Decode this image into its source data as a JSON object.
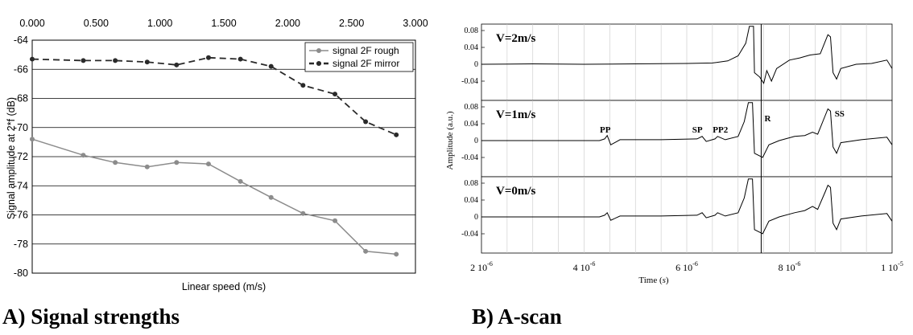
{
  "chart_data": [
    {
      "type": "line",
      "caption": "A) Signal strengths",
      "title": "",
      "xlabel": "Linear speed (m/s)",
      "ylabel": "Signal amplitude at 2*f (dB)",
      "x_axis_position": "top",
      "xlim": [
        0,
        3
      ],
      "ylim": [
        -80,
        -64
      ],
      "xticks": [
        "0.000",
        "0.500",
        "1.000",
        "1.500",
        "2.000",
        "2.500",
        "3.000"
      ],
      "yticks": [
        "-64",
        "-66",
        "-68",
        "-70",
        "-72",
        "-74",
        "-76",
        "-78",
        "-80"
      ],
      "grid": "horizontal",
      "legend_position": "top-right",
      "series": [
        {
          "name": "signal 2F rough",
          "style": "solid",
          "color": "#8c8c8c",
          "x": [
            0.0,
            0.4,
            0.65,
            0.9,
            1.13,
            1.38,
            1.63,
            1.87,
            2.12,
            2.37,
            2.61,
            2.85
          ],
          "y": [
            -70.8,
            -71.9,
            -72.4,
            -72.7,
            -72.4,
            -72.5,
            -73.7,
            -74.8,
            -75.9,
            -76.4,
            -78.5,
            -78.7
          ]
        },
        {
          "name": "signal 2F mirror",
          "style": "dashed",
          "color": "#2a2a2a",
          "x": [
            0.0,
            0.4,
            0.65,
            0.9,
            1.13,
            1.38,
            1.63,
            1.87,
            2.12,
            2.37,
            2.61,
            2.85
          ],
          "y": [
            -65.3,
            -65.4,
            -65.4,
            -65.5,
            -65.7,
            -65.2,
            -65.3,
            -65.8,
            -67.1,
            -67.7,
            -69.6,
            -70.5
          ]
        }
      ]
    },
    {
      "type": "line",
      "caption": "B) A-scan",
      "title": "",
      "xlabel": "Time (s)",
      "ylabel": "Amplitude (a.u.)",
      "xlim": [
        2e-06,
        1e-05
      ],
      "ylim": [
        -0.06,
        0.09
      ],
      "xticks": [
        {
          "mant": "2 10",
          "exp": "-6"
        },
        {
          "mant": "4 10",
          "exp": "-6"
        },
        {
          "mant": "6 10",
          "exp": "-6"
        },
        {
          "mant": "8 10",
          "exp": "-6"
        },
        {
          "mant": "1 10",
          "exp": "-5"
        }
      ],
      "yticks": [
        "0.08",
        "0.04",
        "0",
        "-0.04"
      ],
      "grid": "vertical",
      "panels": [
        {
          "label": "V=2m/s",
          "annotations": [],
          "points": [
            [
              2e-06,
              0.0
            ],
            [
              3e-06,
              0.001
            ],
            [
              4e-06,
              0.0
            ],
            [
              5e-06,
              0.001
            ],
            [
              6e-06,
              0.002
            ],
            [
              6.5e-06,
              0.003
            ],
            [
              6.8e-06,
              0.008
            ],
            [
              7e-06,
              0.02
            ],
            [
              7.15e-06,
              0.05
            ],
            [
              7.22e-06,
              0.09
            ],
            [
              7.3e-06,
              0.09
            ],
            [
              7.32e-06,
              -0.02
            ],
            [
              7.42e-06,
              -0.03
            ],
            [
              7.5e-06,
              -0.045
            ],
            [
              7.56e-06,
              -0.015
            ],
            [
              7.65e-06,
              -0.04
            ],
            [
              7.75e-06,
              -0.01
            ],
            [
              8e-06,
              0.01
            ],
            [
              8.2e-06,
              0.015
            ],
            [
              8.4e-06,
              0.022
            ],
            [
              8.6e-06,
              0.025
            ],
            [
              8.75e-06,
              0.07
            ],
            [
              8.8e-06,
              0.065
            ],
            [
              8.85e-06,
              -0.02
            ],
            [
              8.92e-06,
              -0.035
            ],
            [
              9e-06,
              -0.01
            ],
            [
              9.3e-06,
              0.0
            ],
            [
              9.6e-06,
              0.002
            ],
            [
              9.9e-06,
              0.01
            ],
            [
              1e-05,
              -0.01
            ]
          ]
        },
        {
          "label": "V=1m/s",
          "annotations": [
            "PP",
            "SP",
            "PP2",
            "R",
            "SS"
          ],
          "points": [
            [
              2e-06,
              0.0
            ],
            [
              3.5e-06,
              0.0
            ],
            [
              4.3e-06,
              0.0
            ],
            [
              4.4e-06,
              0.004
            ],
            [
              4.45e-06,
              0.012
            ],
            [
              4.52e-06,
              -0.01
            ],
            [
              4.7e-06,
              0.002
            ],
            [
              5.5e-06,
              0.002
            ],
            [
              6.2e-06,
              0.004
            ],
            [
              6.3e-06,
              0.01
            ],
            [
              6.38e-06,
              -0.002
            ],
            [
              6.55e-06,
              0.004
            ],
            [
              6.6e-06,
              0.01
            ],
            [
              6.75e-06,
              0.002
            ],
            [
              7e-06,
              0.01
            ],
            [
              7.12e-06,
              0.045
            ],
            [
              7.2e-06,
              0.09
            ],
            [
              7.28e-06,
              0.09
            ],
            [
              7.32e-06,
              -0.03
            ],
            [
              7.48e-06,
              -0.04
            ],
            [
              7.6e-06,
              -0.01
            ],
            [
              7.8e-06,
              0.0
            ],
            [
              8.1e-06,
              0.01
            ],
            [
              8.3e-06,
              0.012
            ],
            [
              8.45e-06,
              0.02
            ],
            [
              8.55e-06,
              0.015
            ],
            [
              8.7e-06,
              0.06
            ],
            [
              8.75e-06,
              0.075
            ],
            [
              8.8e-06,
              0.07
            ],
            [
              8.85e-06,
              -0.015
            ],
            [
              8.92e-06,
              -0.03
            ],
            [
              9e-06,
              -0.005
            ],
            [
              9.4e-06,
              0.002
            ],
            [
              9.9e-06,
              0.008
            ],
            [
              1e-05,
              -0.01
            ]
          ]
        },
        {
          "label": "V=0m/s",
          "annotations": [],
          "points": [
            [
              2e-06,
              0.0
            ],
            [
              3.5e-06,
              0.0
            ],
            [
              4.3e-06,
              0.0
            ],
            [
              4.4e-06,
              0.004
            ],
            [
              4.45e-06,
              0.01
            ],
            [
              4.52e-06,
              -0.008
            ],
            [
              4.7e-06,
              0.002
            ],
            [
              5.5e-06,
              0.002
            ],
            [
              6.2e-06,
              0.004
            ],
            [
              6.3e-06,
              0.01
            ],
            [
              6.38e-06,
              -0.002
            ],
            [
              6.55e-06,
              0.004
            ],
            [
              6.6e-06,
              0.01
            ],
            [
              6.75e-06,
              0.002
            ],
            [
              7e-06,
              0.01
            ],
            [
              7.12e-06,
              0.045
            ],
            [
              7.2e-06,
              0.09
            ],
            [
              7.28e-06,
              0.09
            ],
            [
              7.32e-06,
              -0.03
            ],
            [
              7.48e-06,
              -0.04
            ],
            [
              7.6e-06,
              -0.01
            ],
            [
              7.8e-06,
              0.0
            ],
            [
              8.1e-06,
              0.01
            ],
            [
              8.3e-06,
              0.015
            ],
            [
              8.45e-06,
              0.025
            ],
            [
              8.55e-06,
              0.018
            ],
            [
              8.7e-06,
              0.06
            ],
            [
              8.75e-06,
              0.075
            ],
            [
              8.8e-06,
              0.07
            ],
            [
              8.85e-06,
              -0.015
            ],
            [
              8.92e-06,
              -0.03
            ],
            [
              9e-06,
              -0.005
            ],
            [
              9.4e-06,
              0.002
            ],
            [
              9.9e-06,
              0.008
            ],
            [
              1e-05,
              -0.01
            ]
          ]
        }
      ]
    }
  ]
}
